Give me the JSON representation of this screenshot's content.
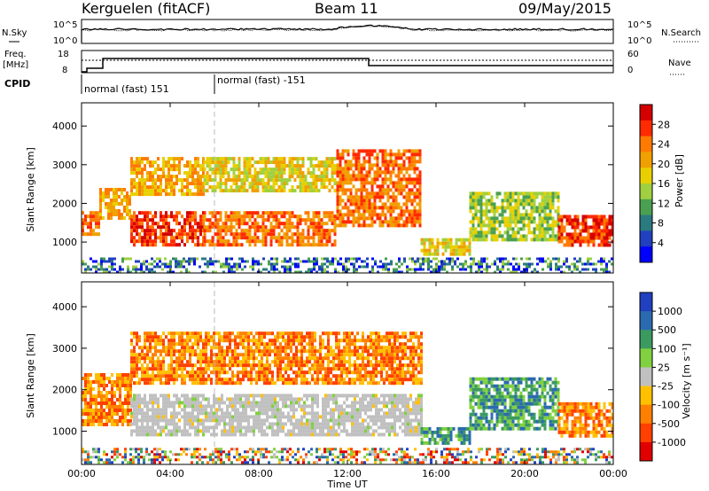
{
  "header": {
    "station": "Kerguelen (fitACF)",
    "beam": "Beam 11",
    "date": "09/May/2015"
  },
  "top_panels": {
    "nsky_label": "N.Sky",
    "nsearch_label": "N.Search",
    "freq_label_line1": "Freq.",
    "freq_label_line2": "[MHz]",
    "nave_label": "Nave",
    "cpid_label": "CPID",
    "nsky_ticks": [
      "10^5",
      "10^0"
    ],
    "nsearch_ticks": [
      "10^5",
      "10^0"
    ],
    "freq_ticks": [
      "18",
      "8"
    ],
    "nave_ticks": [
      "60",
      "0"
    ],
    "cpid_segments": [
      {
        "text": "normal (fast) 151",
        "start_hour": 0,
        "end_hour": 6
      },
      {
        "text": "normal (fast) -151",
        "start_hour": 6,
        "end_hour": 24
      }
    ]
  },
  "panels": {
    "power": {
      "ylabel": "Slant Range [km]",
      "colorbar_label": "Power [dB]",
      "colorbar_ticks": [
        "28",
        "24",
        "20",
        "16",
        "12",
        "8",
        "4"
      ]
    },
    "velocity": {
      "ylabel": "Slant Range [km]",
      "colorbar_label": "Velocity [m s⁻¹]",
      "colorbar_ticks": [
        "1000",
        "500",
        "100",
        "25",
        "-25",
        "-100",
        "-500",
        "-1000"
      ]
    }
  },
  "xaxis": {
    "label": "Time UT",
    "ticks": [
      "00:00",
      "04:00",
      "08:00",
      "12:00",
      "16:00",
      "20:00",
      "00:00"
    ]
  },
  "yaxis_ticks": [
    "4000",
    "3000",
    "2000",
    "1000"
  ],
  "colors": {
    "power_scale": [
      "#d40000",
      "#ff2a00",
      "#ff7a00",
      "#f0a000",
      "#e8d000",
      "#a0d040",
      "#4aa050",
      "#2a7a80",
      "#2040c0",
      "#0000ff"
    ],
    "velocity_scale": [
      "#2040c0",
      "#2a6ab0",
      "#3a9a60",
      "#80d040",
      "#c0c0c0",
      "#ffc000",
      "#ff8000",
      "#ff4000",
      "#e00000"
    ]
  },
  "chart_data": [
    {
      "type": "heatmap",
      "title": "",
      "xlabel": "Time UT",
      "ylabel": "Slant Range [km]",
      "colorbar_label": "Power [dB]",
      "xlim": [
        0,
        24
      ],
      "ylim": [
        200,
        4600
      ],
      "color_range": [
        0,
        32
      ],
      "approx_regions": [
        {
          "start_hour": 0.0,
          "end_hour": 0.8,
          "range_min_km": 1200,
          "range_max_km": 1800,
          "value": 24
        },
        {
          "start_hour": 0.8,
          "end_hour": 2.2,
          "range_min_km": 1600,
          "range_max_km": 2400,
          "value": 22
        },
        {
          "start_hour": 2.2,
          "end_hour": 5.5,
          "range_min_km": 900,
          "range_max_km": 1800,
          "value": 28
        },
        {
          "start_hour": 2.2,
          "end_hour": 5.5,
          "range_min_km": 2200,
          "range_max_km": 3200,
          "value": 20
        },
        {
          "start_hour": 5.5,
          "end_hour": 11.5,
          "range_min_km": 900,
          "range_max_km": 1800,
          "value": 26
        },
        {
          "start_hour": 5.5,
          "end_hour": 11.5,
          "range_min_km": 2300,
          "range_max_km": 3200,
          "value": 18
        },
        {
          "start_hour": 11.5,
          "end_hour": 15.3,
          "range_min_km": 1400,
          "range_max_km": 3400,
          "value": 24
        },
        {
          "start_hour": 15.3,
          "end_hour": 17.5,
          "range_min_km": 700,
          "range_max_km": 1100,
          "value": 18
        },
        {
          "start_hour": 17.5,
          "end_hour": 21.5,
          "range_min_km": 1100,
          "range_max_km": 2300,
          "value": 14
        },
        {
          "start_hour": 21.5,
          "end_hour": 24.0,
          "range_min_km": 900,
          "range_max_km": 1700,
          "value": 28
        }
      ]
    },
    {
      "type": "heatmap",
      "title": "",
      "xlabel": "Time UT",
      "ylabel": "Slant Range [km]",
      "colorbar_label": "Velocity [m s⁻¹]",
      "xlim": [
        0,
        24
      ],
      "ylim": [
        200,
        4600
      ],
      "approx_regions": [
        {
          "start_hour": 0.0,
          "end_hour": 2.2,
          "range_min_km": 1200,
          "range_max_km": 2400,
          "value": -200
        },
        {
          "start_hour": 2.2,
          "end_hour": 15.3,
          "range_min_km": 900,
          "range_max_km": 1900,
          "value": 0
        },
        {
          "start_hour": 2.2,
          "end_hour": 15.3,
          "range_min_km": 2200,
          "range_max_km": 3400,
          "value": -100
        },
        {
          "start_hour": 15.3,
          "end_hour": 17.5,
          "range_min_km": 700,
          "range_max_km": 1100,
          "value": 80
        },
        {
          "start_hour": 17.5,
          "end_hour": 21.5,
          "range_min_km": 1100,
          "range_max_km": 2300,
          "value": 60
        },
        {
          "start_hour": 21.5,
          "end_hour": 24.0,
          "range_min_km": 900,
          "range_max_km": 1700,
          "value": -200
        }
      ]
    }
  ]
}
